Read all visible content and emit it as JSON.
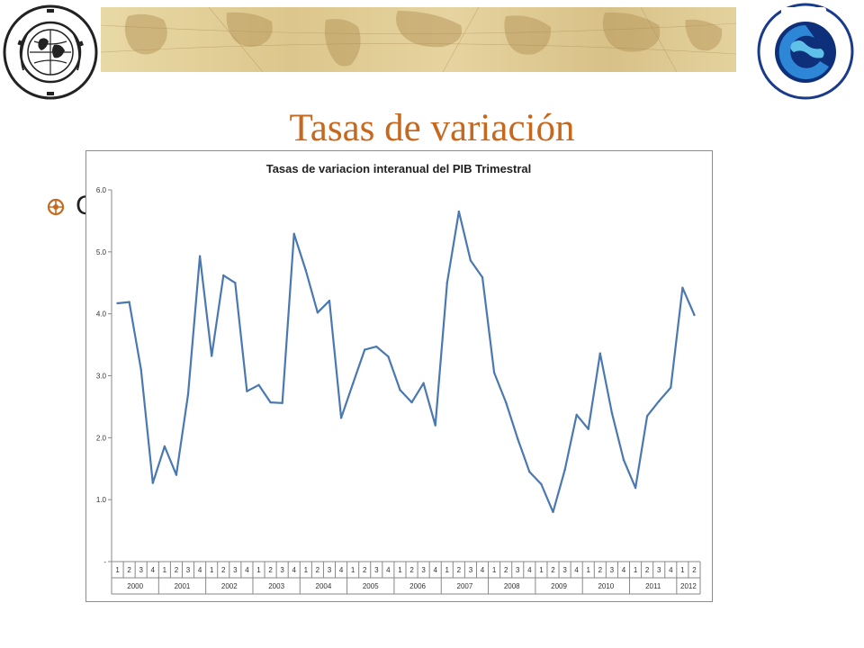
{
  "slide": {
    "title": "Tasas de variación",
    "bullet_text": "C"
  },
  "logos": {
    "imf_name": "IMF-logo",
    "captac_name": "CAPTAC-DR-logo"
  },
  "colors": {
    "title": "#c7681f",
    "line": "#4a78b0",
    "map": "#dcc68c"
  },
  "chart_data": {
    "type": "line",
    "title": "Tasas de variacion interanual del PIB Trimestral",
    "ylim": [
      0,
      6
    ],
    "y_ticks": [
      0,
      1,
      2,
      3,
      4,
      5,
      6
    ],
    "y_tick_labels": [
      "-",
      "1.0",
      "2.0",
      "3.0",
      "4.0",
      "5.0",
      "6.0"
    ],
    "quarters": [
      "1",
      "2",
      "3",
      "4",
      "1",
      "2",
      "3",
      "4",
      "1",
      "2",
      "3",
      "4",
      "1",
      "2",
      "3",
      "4",
      "1",
      "2",
      "3",
      "4",
      "1",
      "2",
      "3",
      "4",
      "1",
      "2",
      "3",
      "4",
      "1",
      "2",
      "3",
      "4",
      "1",
      "2",
      "3",
      "4",
      "1",
      "2",
      "3",
      "4",
      "1",
      "2",
      "3",
      "4",
      "1",
      "2",
      "3",
      "4",
      "1",
      "2"
    ],
    "years": [
      {
        "label": "2000",
        "quarters": 4
      },
      {
        "label": "2001",
        "quarters": 4
      },
      {
        "label": "2002",
        "quarters": 4
      },
      {
        "label": "2003",
        "quarters": 4
      },
      {
        "label": "2004",
        "quarters": 4
      },
      {
        "label": "2005",
        "quarters": 4
      },
      {
        "label": "2006",
        "quarters": 4
      },
      {
        "label": "2007",
        "quarters": 4
      },
      {
        "label": "2008",
        "quarters": 4
      },
      {
        "label": "2009",
        "quarters": 4
      },
      {
        "label": "2010",
        "quarters": 4
      },
      {
        "label": "2011",
        "quarters": 4
      },
      {
        "label": "2012",
        "quarters": 2
      }
    ],
    "values": [
      4.17,
      4.19,
      3.1,
      1.27,
      1.86,
      1.4,
      2.7,
      4.93,
      3.32,
      4.62,
      4.5,
      2.75,
      2.85,
      2.57,
      2.56,
      5.29,
      4.7,
      4.02,
      4.21,
      2.32,
      2.87,
      3.42,
      3.47,
      3.31,
      2.77,
      2.57,
      2.88,
      2.2,
      4.5,
      5.65,
      4.86,
      4.59,
      3.05,
      2.57,
      1.98,
      1.45,
      1.25,
      0.8,
      1.48,
      2.37,
      2.14,
      3.36,
      2.4,
      1.64,
      1.19,
      2.35,
      2.59,
      2.81,
      4.42,
      3.98
    ],
    "grid": false,
    "legend": "none"
  }
}
